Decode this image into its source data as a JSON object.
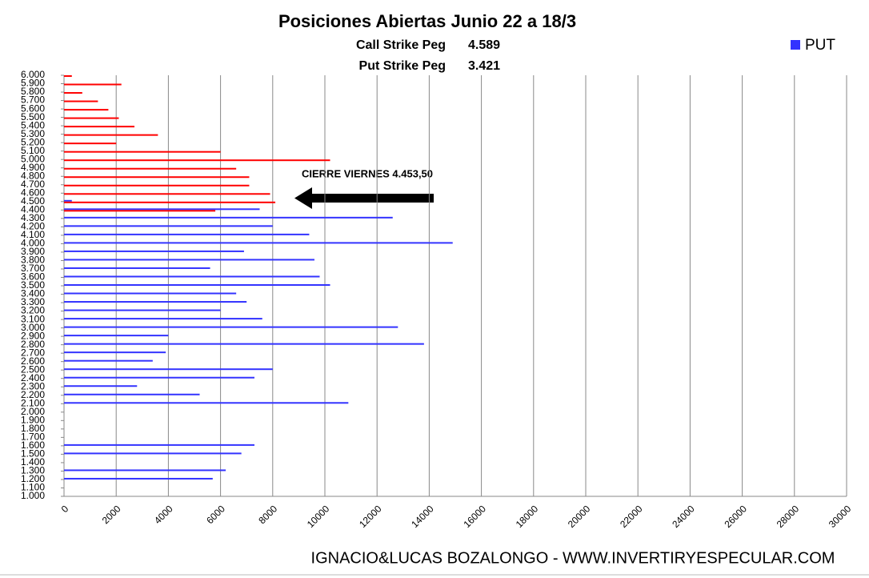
{
  "chart_data": {
    "type": "bar",
    "orientation": "horizontal",
    "title": "Posiciones Abiertas Junio 22 a 18/3",
    "header_lines": [
      {
        "label": "Call Strike Peg",
        "value": "4.589"
      },
      {
        "label": "Put Strike Peg",
        "value": "3.421"
      }
    ],
    "annotation": "CIERRE VIERNES 4.453,50",
    "footer": "IGNACIO&LUCAS BOZALONGO - WWW.INVERTIRYESPECULAR.COM",
    "categories": [
      "1.000",
      "1.100",
      "1.200",
      "1.300",
      "1.400",
      "1.500",
      "1.600",
      "1.700",
      "1.800",
      "1.900",
      "2.000",
      "2.100",
      "2.200",
      "2.300",
      "2.400",
      "2.500",
      "2.600",
      "2.700",
      "2.800",
      "2.900",
      "3.000",
      "3.100",
      "3.200",
      "3.300",
      "3.400",
      "3.500",
      "3.600",
      "3.700",
      "3.800",
      "3.900",
      "4.000",
      "4.100",
      "4.200",
      "4.300",
      "4.400",
      "4.500",
      "4.600",
      "4.700",
      "4.800",
      "4.900",
      "5.000",
      "5.100",
      "5.200",
      "5.300",
      "5.400",
      "5.500",
      "5.600",
      "5.700",
      "5.800",
      "5.900",
      "6.000"
    ],
    "series": [
      {
        "name": "PUT",
        "color": "#3333ff",
        "values": [
          0,
          0,
          5700,
          6200,
          0,
          6800,
          7300,
          0,
          0,
          0,
          0,
          10900,
          5200,
          2800,
          7300,
          8000,
          3400,
          3900,
          13800,
          4000,
          12800,
          7600,
          6000,
          7000,
          6600,
          10200,
          9800,
          5600,
          9600,
          6900,
          14900,
          9400,
          8000,
          12600,
          7500,
          300,
          0,
          0,
          0,
          0,
          0,
          0,
          0,
          0,
          0,
          0,
          0,
          0,
          0,
          0,
          0
        ]
      },
      {
        "color": "#ff0000",
        "values": [
          0,
          0,
          0,
          0,
          0,
          0,
          0,
          0,
          0,
          0,
          0,
          0,
          0,
          0,
          0,
          0,
          0,
          0,
          0,
          0,
          0,
          0,
          0,
          0,
          0,
          0,
          0,
          0,
          0,
          0,
          0,
          0,
          0,
          0,
          5800,
          8100,
          7900,
          7100,
          7100,
          6600,
          10200,
          6000,
          2000,
          3600,
          2700,
          2100,
          1700,
          1300,
          700,
          2200,
          300
        ]
      }
    ],
    "xlim": [
      0,
      30000
    ],
    "xticks": [
      0,
      2000,
      4000,
      6000,
      8000,
      10000,
      12000,
      14000,
      16000,
      18000,
      20000,
      22000,
      24000,
      26000,
      28000,
      30000
    ],
    "grid": true,
    "legend": "top-right"
  }
}
